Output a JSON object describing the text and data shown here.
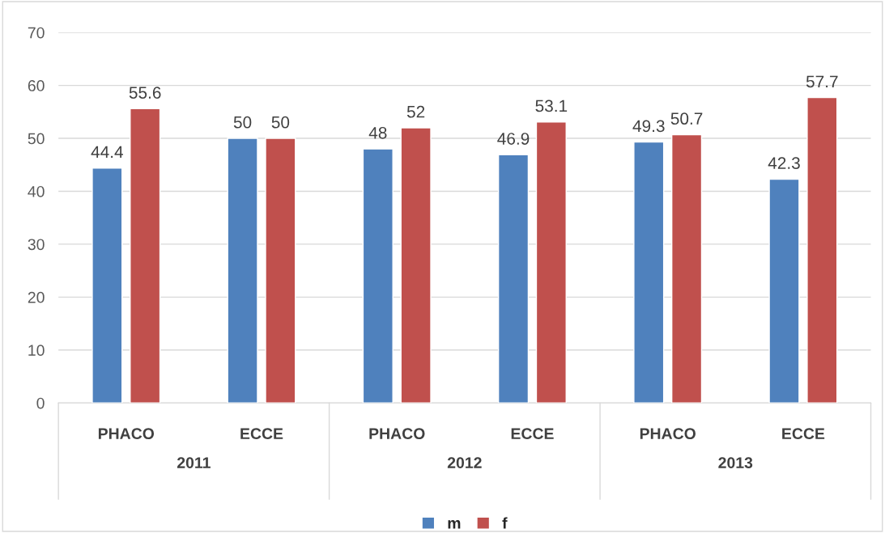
{
  "chart_data": {
    "type": "bar",
    "categories": [
      "PHACO",
      "ECCE",
      "PHACO",
      "ECCE",
      "PHACO",
      "ECCE"
    ],
    "series": [
      {
        "name": "m",
        "color": "#4f81bd",
        "values": [
          44.4,
          50,
          48,
          46.9,
          49.3,
          42.3
        ]
      },
      {
        "name": "f",
        "color": "#c0504d",
        "values": [
          55.6,
          50,
          52,
          53.1,
          50.7,
          57.7
        ]
      }
    ],
    "annotations": [
      "2011",
      "2012",
      "2013"
    ],
    "ylim": [
      0,
      70
    ],
    "yticks": [
      0,
      10,
      20,
      30,
      40,
      50,
      60,
      70
    ],
    "grid": "y",
    "legend": "bottom",
    "data_labels": true
  }
}
